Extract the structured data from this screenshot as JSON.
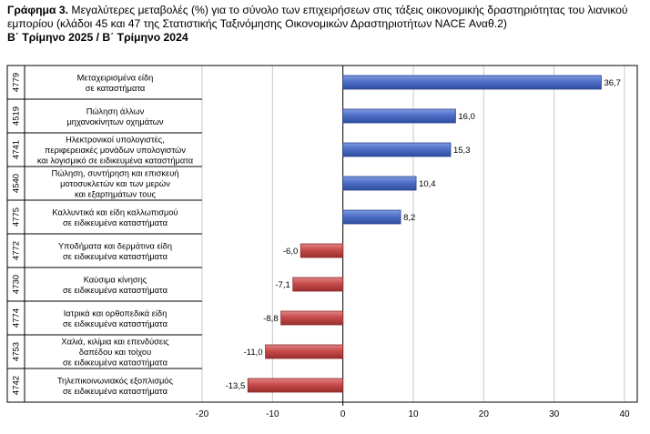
{
  "title": {
    "label": "Γράφημα 3.",
    "text": "Μεγαλύτερες μεταβολές (%) για το σύνολο των επιχειρήσεων στις τάξεις οικονομικής δραστηριότητας του λιανικού εμπορίου (κλάδοι 45 και 47 της Στατιστικής Ταξινόμησης Οικονομικών Δραστηριοτήτων NACE Αναθ.2)",
    "subtitle": "Β΄ Τρίμηνο 2025 / Β΄ Τρίμηνο 2024"
  },
  "colors": {
    "positive": "#4f6fc8",
    "negative": "#c84b4b",
    "grid": "#c8c8c8"
  },
  "chart_data": {
    "type": "bar",
    "orientation": "horizontal",
    "xlim": [
      -20,
      40
    ],
    "xticks": [
      -20,
      -10,
      0,
      10,
      20,
      30,
      40
    ],
    "grid": true,
    "categories": [
      {
        "code": "4779",
        "lines": [
          "Μεταχειρισμένα είδη",
          "σε καταστήματα"
        ],
        "value": 36.7,
        "label": "36,7"
      },
      {
        "code": "4519",
        "lines": [
          "Πώληση άλλων",
          "μηχανοκίνητων οχημάτων"
        ],
        "value": 16.0,
        "label": "16,0"
      },
      {
        "code": "4741",
        "lines": [
          "Ηλεκτρονικοί υπολογιστές,",
          "περιφερειακές μονάδων υπολογιστών",
          "και λογισμικό σε ειδικευμένα καταστήματα"
        ],
        "value": 15.3,
        "label": "15,3"
      },
      {
        "code": "4540",
        "lines": [
          "Πώληση, συντήρηση και επισκευή",
          "μοτοσυκλετών και των μερών",
          "και εξαρτημάτων τους"
        ],
        "value": 10.4,
        "label": "10,4"
      },
      {
        "code": "4775",
        "lines": [
          "Καλλυντικά και είδη καλλωπισμού",
          "σε ειδικευμένα καταστήματα"
        ],
        "value": 8.2,
        "label": "8,2"
      },
      {
        "code": "4772",
        "lines": [
          "Υποδήματα και δερμάτινα είδη",
          "σε ειδικευμένα καταστήματα"
        ],
        "value": -6.0,
        "label": "-6,0"
      },
      {
        "code": "4730",
        "lines": [
          "Καύσιμα κίνησης",
          "σε ειδικευμένα καταστήματα"
        ],
        "value": -7.1,
        "label": "-7,1"
      },
      {
        "code": "4774",
        "lines": [
          "Ιατρικά και ορθοπεδικά είδη",
          "σε ειδικευμένα καταστήματα"
        ],
        "value": -8.8,
        "label": "-8,8"
      },
      {
        "code": "4753",
        "lines": [
          "Χαλιά, κιλίμια και επενδύσεις",
          "δαπέδου και τοίχου",
          "σε ειδικευμένα καταστήματα"
        ],
        "value": -11.0,
        "label": "-11,0"
      },
      {
        "code": "4742",
        "lines": [
          "Τηλεπικοινωνιακός εξοπλισμός",
          "σε ειδικευμένα καταστήματα"
        ],
        "value": -13.5,
        "label": "-13,5"
      }
    ]
  }
}
